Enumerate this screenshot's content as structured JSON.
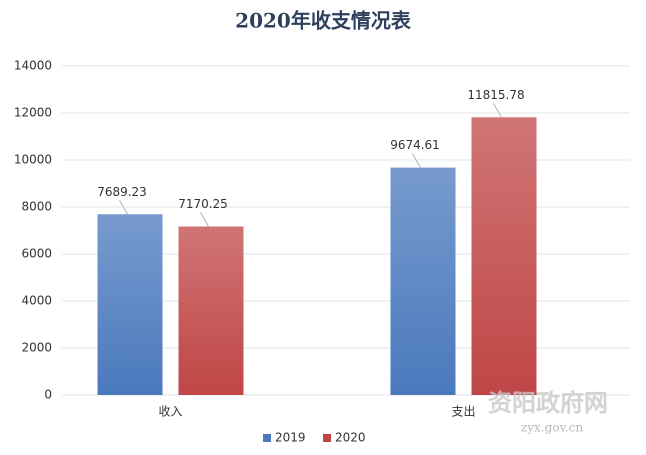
{
  "chart_data": {
    "type": "bar",
    "title": "2020年收支情况表",
    "categories": [
      "收入",
      "支出"
    ],
    "series": [
      {
        "name": "2019",
        "color": "#4a79bd",
        "values": [
          7689.23,
          9674.61
        ]
      },
      {
        "name": "2020",
        "color": "#c04646",
        "values": [
          7170.25,
          11815.78
        ]
      }
    ],
    "ylim": [
      0,
      14000
    ],
    "yticks": [
      0,
      2000,
      4000,
      6000,
      8000,
      10000,
      12000,
      14000
    ],
    "grid": true,
    "legend": "bottom",
    "annotations": [
      "资阳政府网",
      "zyx.gov.cn"
    ]
  }
}
